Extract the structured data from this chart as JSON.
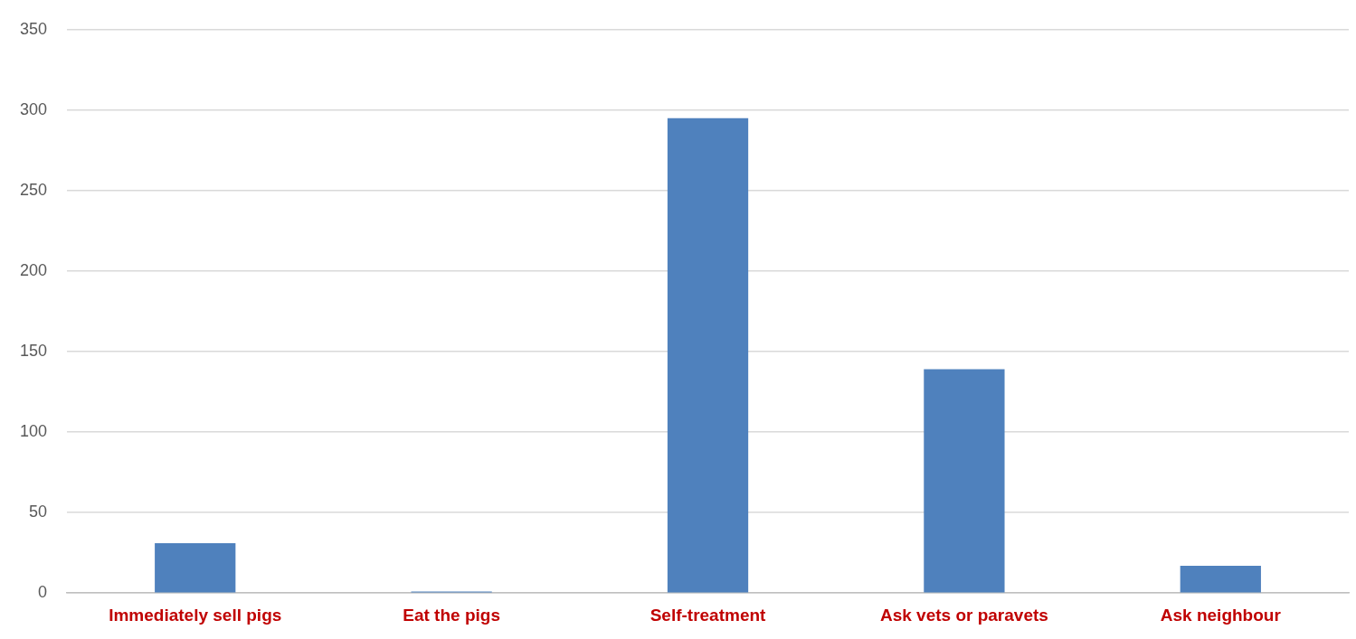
{
  "chart_data": {
    "type": "bar",
    "categories": [
      "Immediately sell pigs",
      "Eat the pigs",
      "Self-treatment",
      "Ask vets or paravets",
      "Ask neighbour"
    ],
    "values": [
      31,
      1,
      295,
      139,
      17
    ],
    "color": "#4f81bd",
    "ylim": [
      0,
      350
    ],
    "yticks": [
      0,
      50,
      100,
      150,
      200,
      250,
      300,
      350
    ],
    "grid": "y",
    "legend": false
  }
}
